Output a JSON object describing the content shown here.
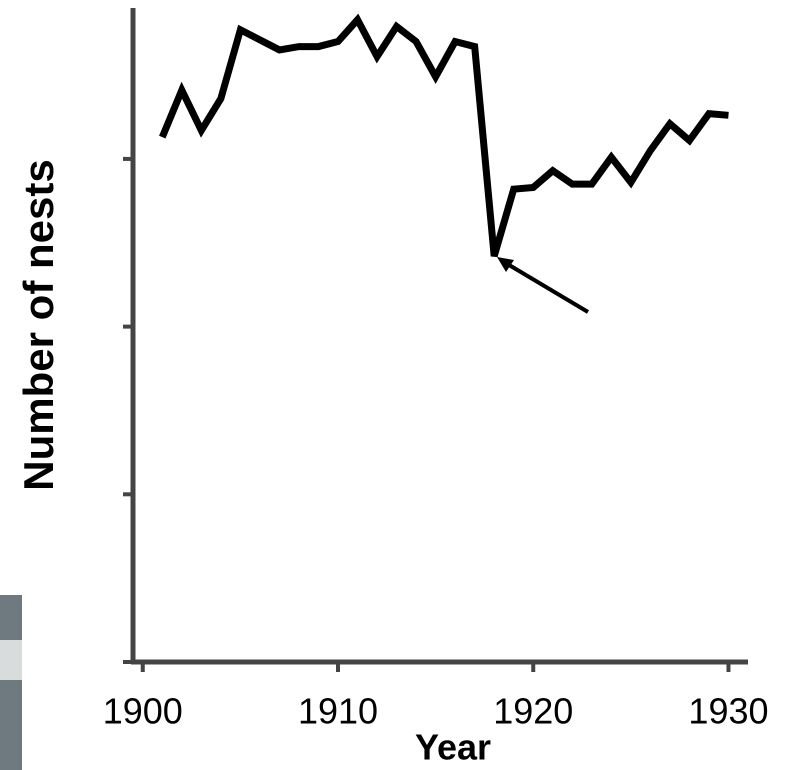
{
  "chart_data": {
    "type": "line",
    "x_label": "Year",
    "y_label": "Number of nests",
    "x": [
      1901,
      1902,
      1903,
      1904,
      1905,
      1906,
      1907,
      1908,
      1909,
      1910,
      1911,
      1912,
      1913,
      1914,
      1915,
      1916,
      1917,
      1918,
      1919,
      1920,
      1921,
      1922,
      1923,
      1924,
      1925,
      1926,
      1927,
      1928,
      1929,
      1930
    ],
    "values": [
      3.13,
      3.41,
      3.17,
      3.36,
      3.77,
      3.71,
      3.65,
      3.67,
      3.67,
      3.7,
      3.83,
      3.61,
      3.79,
      3.7,
      3.49,
      3.7,
      3.67,
      2.42,
      2.82,
      2.83,
      2.93,
      2.85,
      2.85,
      3.01,
      2.86,
      3.05,
      3.21,
      3.11,
      3.27,
      3.26
    ],
    "color": "#000000",
    "xlim": [
      1899.5,
      1931
    ],
    "xticks": [
      1900,
      1910,
      1920,
      1930
    ],
    "ylim": [
      0,
      3.9
    ],
    "yticks": [
      0,
      1,
      2,
      3
    ]
  }
}
